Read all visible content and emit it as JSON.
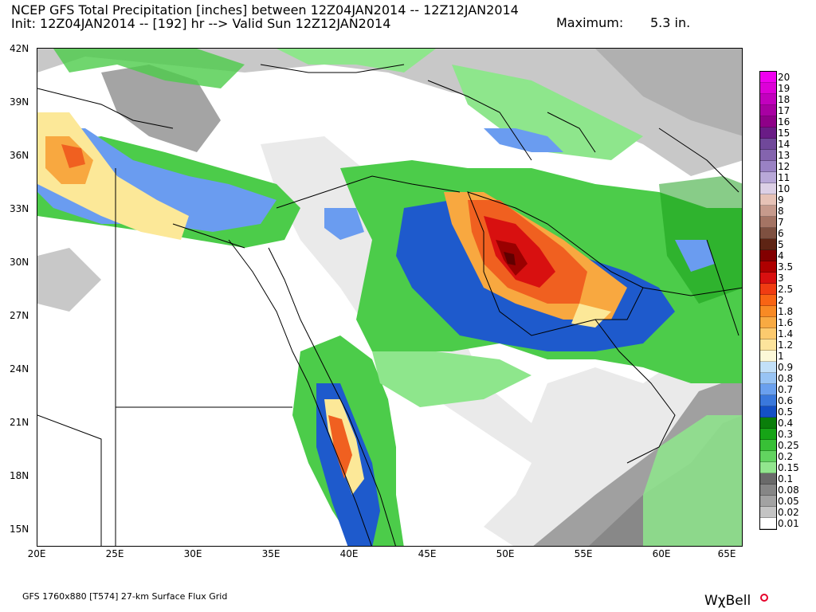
{
  "header": {
    "line1": "NCEP GFS Total Precipitation [inches] between 12Z04JAN2014 -- 12Z12JAN2014",
    "line2": "Init: 12Z04JAN2014 -- [192] hr --> Valid Sun 12Z12JAN2014",
    "max_label": "Maximum:",
    "max_value": "5.3 in."
  },
  "map": {
    "lat_labels": [
      "42N",
      "39N",
      "36N",
      "33N",
      "30N",
      "27N",
      "24N",
      "21N",
      "18N",
      "15N"
    ],
    "lon_labels": [
      "20E",
      "25E",
      "30E",
      "35E",
      "40E",
      "45E",
      "50E",
      "55E",
      "60E",
      "65E"
    ],
    "colors": {
      "gray_light": "#c8c8c8",
      "gray_mid": "#a0a0a0",
      "gray_dark": "#7e7e7e",
      "green_light": "#8ee68c",
      "green": "#4ccc4a",
      "green_dark": "#129a12",
      "blue_dark": "#1e5acc",
      "blue": "#6a9cf0",
      "blue_light": "#a8d0f4",
      "yellow": "#fce898",
      "orange": "#f8a840",
      "red_orange": "#f06020",
      "red": "#d81010",
      "dark_red": "#9a0000",
      "maroon": "#600000"
    }
  },
  "legend": {
    "items": [
      {
        "label": "20",
        "color": "#f000f0"
      },
      {
        "label": "19",
        "color": "#dd00d8"
      },
      {
        "label": "18",
        "color": "#c200be"
      },
      {
        "label": "17",
        "color": "#a800a2"
      },
      {
        "label": "16",
        "color": "#8e0088"
      },
      {
        "label": "15",
        "color": "#6a1c86"
      },
      {
        "label": "14",
        "color": "#70489a"
      },
      {
        "label": "13",
        "color": "#8464ae"
      },
      {
        "label": "12",
        "color": "#9a82c4"
      },
      {
        "label": "11",
        "color": "#b8a8d8"
      },
      {
        "label": "10",
        "color": "#dcd0e6"
      },
      {
        "label": "9",
        "color": "#e6c2b6"
      },
      {
        "label": "8",
        "color": "#c69a8c"
      },
      {
        "label": "7",
        "color": "#a47464"
      },
      {
        "label": "6",
        "color": "#7e5040"
      },
      {
        "label": "5",
        "color": "#5e2414"
      },
      {
        "label": "4",
        "color": "#820000"
      },
      {
        "label": "3.5",
        "color": "#ae0000"
      },
      {
        "label": "3",
        "color": "#d81010"
      },
      {
        "label": "2.5",
        "color": "#f03c12"
      },
      {
        "label": "2",
        "color": "#f86414"
      },
      {
        "label": "1.8",
        "color": "#f88a24"
      },
      {
        "label": "1.6",
        "color": "#f8aa42"
      },
      {
        "label": "1.4",
        "color": "#fcca6e"
      },
      {
        "label": "1.2",
        "color": "#fce49c"
      },
      {
        "label": "1",
        "color": "#fcf8d8"
      },
      {
        "label": "0.9",
        "color": "#c2e0f8"
      },
      {
        "label": "0.8",
        "color": "#98c4f4"
      },
      {
        "label": "0.7",
        "color": "#6aa0ee"
      },
      {
        "label": "0.6",
        "color": "#3a78dc"
      },
      {
        "label": "0.5",
        "color": "#1450c6"
      },
      {
        "label": "0.4",
        "color": "#0a7e0a"
      },
      {
        "label": "0.3",
        "color": "#16a416"
      },
      {
        "label": "0.25",
        "color": "#38c036"
      },
      {
        "label": "0.2",
        "color": "#62d460"
      },
      {
        "label": "0.15",
        "color": "#92e68e"
      },
      {
        "label": "0.1",
        "color": "#6a6a6a"
      },
      {
        "label": "0.08",
        "color": "#868686"
      },
      {
        "label": "0.05",
        "color": "#a2a2a2"
      },
      {
        "label": "0.02",
        "color": "#c4c4c4"
      },
      {
        "label": "0.01",
        "color": "#ffffff"
      }
    ]
  },
  "footer": {
    "model_text": "GFS 1760x880 [T574] 27-km Surface Flux Grid",
    "brand": "WχBell"
  }
}
